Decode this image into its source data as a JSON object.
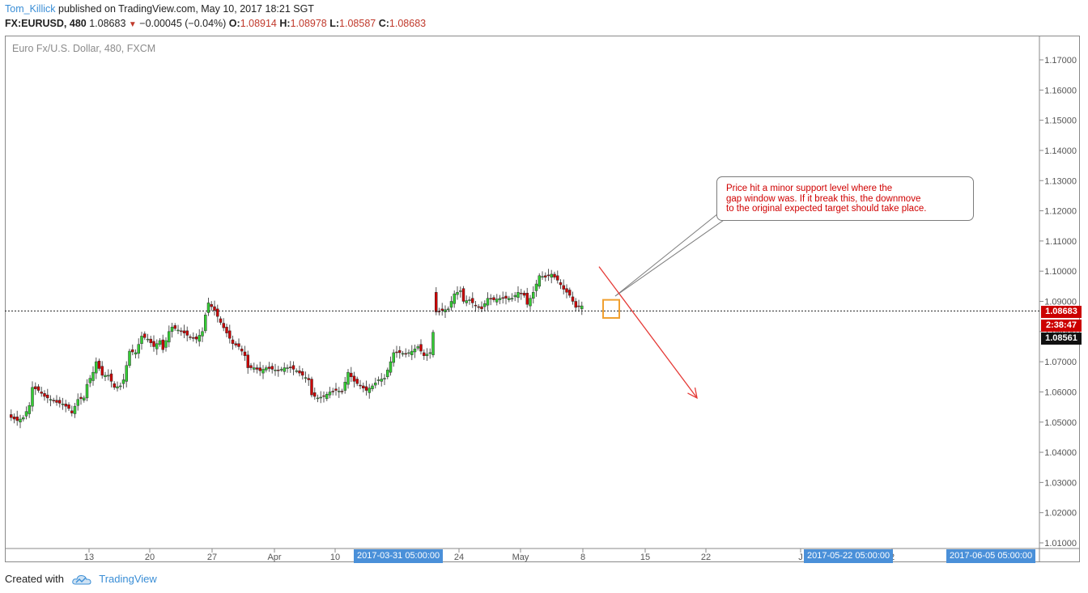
{
  "header": {
    "author": "Tom_Killick",
    "published": "published on TradingView.com, May 10, 2017 18:21 SGT",
    "symbol": "FX:EURUSD, 480",
    "last": "1.08683",
    "change": "−0.00045 (−0.04%)",
    "o_label": "O:",
    "o_value": "1.08914",
    "h_label": "H:",
    "h_value": "1.08978",
    "l_label": "L:",
    "l_value": "1.08587",
    "c_label": "C:",
    "c_value": "1.08683"
  },
  "chart": {
    "symbol_description": "Euro Fx/U.S. Dollar, 480, FXCM",
    "annotation_lines": [
      "Price hit a minor support level where the",
      "gap window was. If it break this, the downmove",
      "to the original expected target should take place."
    ],
    "price_tags": {
      "last_price": "1.08683",
      "countdown": "2:38:47",
      "crosshair_price": "1.08561"
    },
    "date_tags": [
      "2017-03-31 05:00:00",
      "2017-05-22 05:00:00",
      "2017-06-05 05:00:00"
    ]
  },
  "footer": {
    "created_with": "Created with",
    "brand": "TradingView"
  },
  "colors": {
    "up": "#33cc33",
    "down": "#cc0000",
    "accent": "#3a8ed6",
    "highlight_box": "#f0a030",
    "arrow": "#e53935"
  },
  "chart_data": {
    "type": "candlestick",
    "symbol": "FX:EURUSD",
    "timeframe": "480",
    "ylim": [
      1.005,
      1.177
    ],
    "y_ticks": [
      "1.17000",
      "1.16000",
      "1.15000",
      "1.14000",
      "1.13000",
      "1.12000",
      "1.11000",
      "1.10000",
      "1.09000",
      "1.08000",
      "1.07000",
      "1.06000",
      "1.05000",
      "1.04000",
      "1.03000",
      "1.02000",
      "1.01000"
    ],
    "x_tick_labels": [
      "13",
      "20",
      "27",
      "Apr",
      "10",
      "24",
      "May",
      "8",
      "15",
      "22",
      "J",
      "2"
    ],
    "last_price": 1.08683,
    "crosshair_price": 1.08561,
    "close_path": [
      [
        1,
        1.0515
      ],
      [
        3,
        1.0505
      ],
      [
        5,
        1.0515
      ],
      [
        7,
        1.0555
      ],
      [
        8,
        1.0615
      ],
      [
        10,
        1.0605
      ],
      [
        12,
        1.0585
      ],
      [
        14,
        1.0575
      ],
      [
        16,
        1.0565
      ],
      [
        18,
        1.056
      ],
      [
        20,
        1.0545
      ],
      [
        21,
        1.053
      ],
      [
        23,
        1.0575
      ],
      [
        25,
        1.058
      ],
      [
        26,
        1.0625
      ],
      [
        28,
        1.0665
      ],
      [
        29,
        1.07
      ],
      [
        31,
        1.0655
      ],
      [
        33,
        1.0655
      ],
      [
        35,
        1.0615
      ],
      [
        37,
        1.062
      ],
      [
        38,
        1.064
      ],
      [
        40,
        1.0735
      ],
      [
        42,
        1.073
      ],
      [
        44,
        1.0785
      ],
      [
        46,
        1.0775
      ],
      [
        48,
        1.075
      ],
      [
        50,
        1.077
      ],
      [
        51,
        1.074
      ],
      [
        53,
        1.08
      ],
      [
        54,
        1.0815
      ],
      [
        56,
        1.0805
      ],
      [
        58,
        1.0795
      ],
      [
        60,
        1.078
      ],
      [
        62,
        1.0775
      ],
      [
        64,
        1.08
      ],
      [
        65,
        1.0855
      ],
      [
        66,
        1.0895
      ],
      [
        68,
        1.087
      ],
      [
        70,
        1.083
      ],
      [
        72,
        1.0795
      ],
      [
        74,
        1.076
      ],
      [
        76,
        1.075
      ],
      [
        78,
        1.072
      ],
      [
        79,
        1.068
      ],
      [
        81,
        1.068
      ],
      [
        83,
        1.067
      ],
      [
        85,
        1.068
      ],
      [
        87,
        1.0675
      ],
      [
        89,
        1.067
      ],
      [
        91,
        1.068
      ],
      [
        93,
        1.068
      ],
      [
        95,
        1.067
      ],
      [
        97,
        1.0655
      ],
      [
        99,
        1.064
      ],
      [
        100,
        1.059
      ],
      [
        102,
        1.058
      ],
      [
        104,
        1.0585
      ],
      [
        106,
        1.06
      ],
      [
        108,
        1.0605
      ],
      [
        110,
        1.06
      ],
      [
        112,
        1.0665
      ],
      [
        114,
        1.0635
      ],
      [
        116,
        1.062
      ],
      [
        118,
        1.0605
      ],
      [
        120,
        1.062
      ],
      [
        122,
        1.064
      ],
      [
        124,
        1.0645
      ],
      [
        126,
        1.07
      ],
      [
        127,
        1.073
      ],
      [
        129,
        1.073
      ],
      [
        131,
        1.0725
      ],
      [
        133,
        1.0735
      ],
      [
        135,
        1.075
      ],
      [
        137,
        1.072
      ],
      [
        139,
        1.073
      ],
      [
        141,
        1.0865
      ],
      [
        143,
        1.087
      ],
      [
        145,
        1.0875
      ],
      [
        147,
        1.0925
      ],
      [
        149,
        1.0935
      ],
      [
        150,
        1.09
      ],
      [
        152,
        1.0905
      ],
      [
        154,
        1.0885
      ],
      [
        156,
        1.0875
      ],
      [
        158,
        1.091
      ],
      [
        160,
        1.0905
      ],
      [
        162,
        1.091
      ],
      [
        164,
        1.091
      ],
      [
        166,
        1.091
      ],
      [
        168,
        1.093
      ],
      [
        170,
        1.092
      ],
      [
        171,
        1.089
      ],
      [
        173,
        1.093
      ],
      [
        175,
        1.0985
      ],
      [
        177,
        1.098
      ],
      [
        179,
        1.099
      ],
      [
        181,
        1.097
      ],
      [
        183,
        1.094
      ],
      [
        185,
        1.092
      ],
      [
        187,
        1.088
      ],
      [
        189,
        1.0885
      ]
    ],
    "annotations": [
      {
        "type": "text_callout",
        "text": "Price hit a minor support level where the gap window was. If it break this, the downmove to the original expected target should take place."
      },
      {
        "type": "arrow",
        "from": {
          "x": "2017-05-07",
          "y": 1.1015
        },
        "to": {
          "x": "2017-05-22",
          "y": 1.058
        },
        "color": "#e53935"
      },
      {
        "type": "rectangle",
        "around": "2017-05-10",
        "y_range": [
          1.0845,
          1.0905
        ],
        "color": "#f0a030"
      }
    ]
  }
}
